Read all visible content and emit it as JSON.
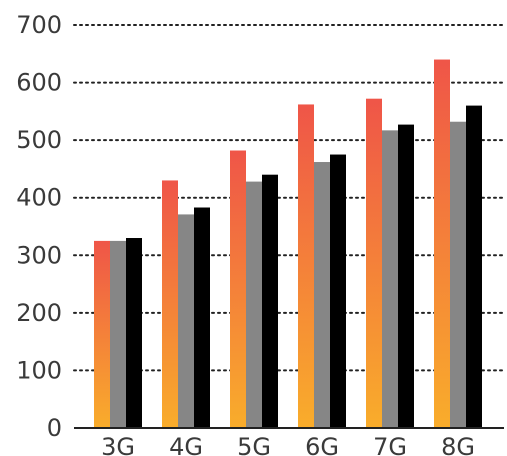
{
  "chart_data": {
    "type": "bar",
    "categories": [
      "3G",
      "4G",
      "5G",
      "6G",
      "7G",
      "8G"
    ],
    "series": [
      {
        "values": [
          325,
          430,
          482,
          562,
          572,
          640
        ]
      },
      {
        "values": [
          325,
          371,
          428,
          462,
          517,
          532
        ]
      },
      {
        "values": [
          330,
          383,
          440,
          475,
          527,
          560
        ]
      }
    ],
    "ylim": [
      0,
      700
    ],
    "yticks": [
      0,
      100,
      200,
      300,
      400,
      500,
      600,
      700
    ],
    "grid": true,
    "legend": "none",
    "title": "",
    "xlabel": "",
    "ylabel": ""
  },
  "colors": {
    "series_1_top": "#ef5548",
    "series_1_bottom": "#f9ad2b",
    "series_2": "#868686",
    "series_3": "#000000",
    "grid": "#222222",
    "axis": "#222222",
    "text": "#3a3a3a"
  }
}
